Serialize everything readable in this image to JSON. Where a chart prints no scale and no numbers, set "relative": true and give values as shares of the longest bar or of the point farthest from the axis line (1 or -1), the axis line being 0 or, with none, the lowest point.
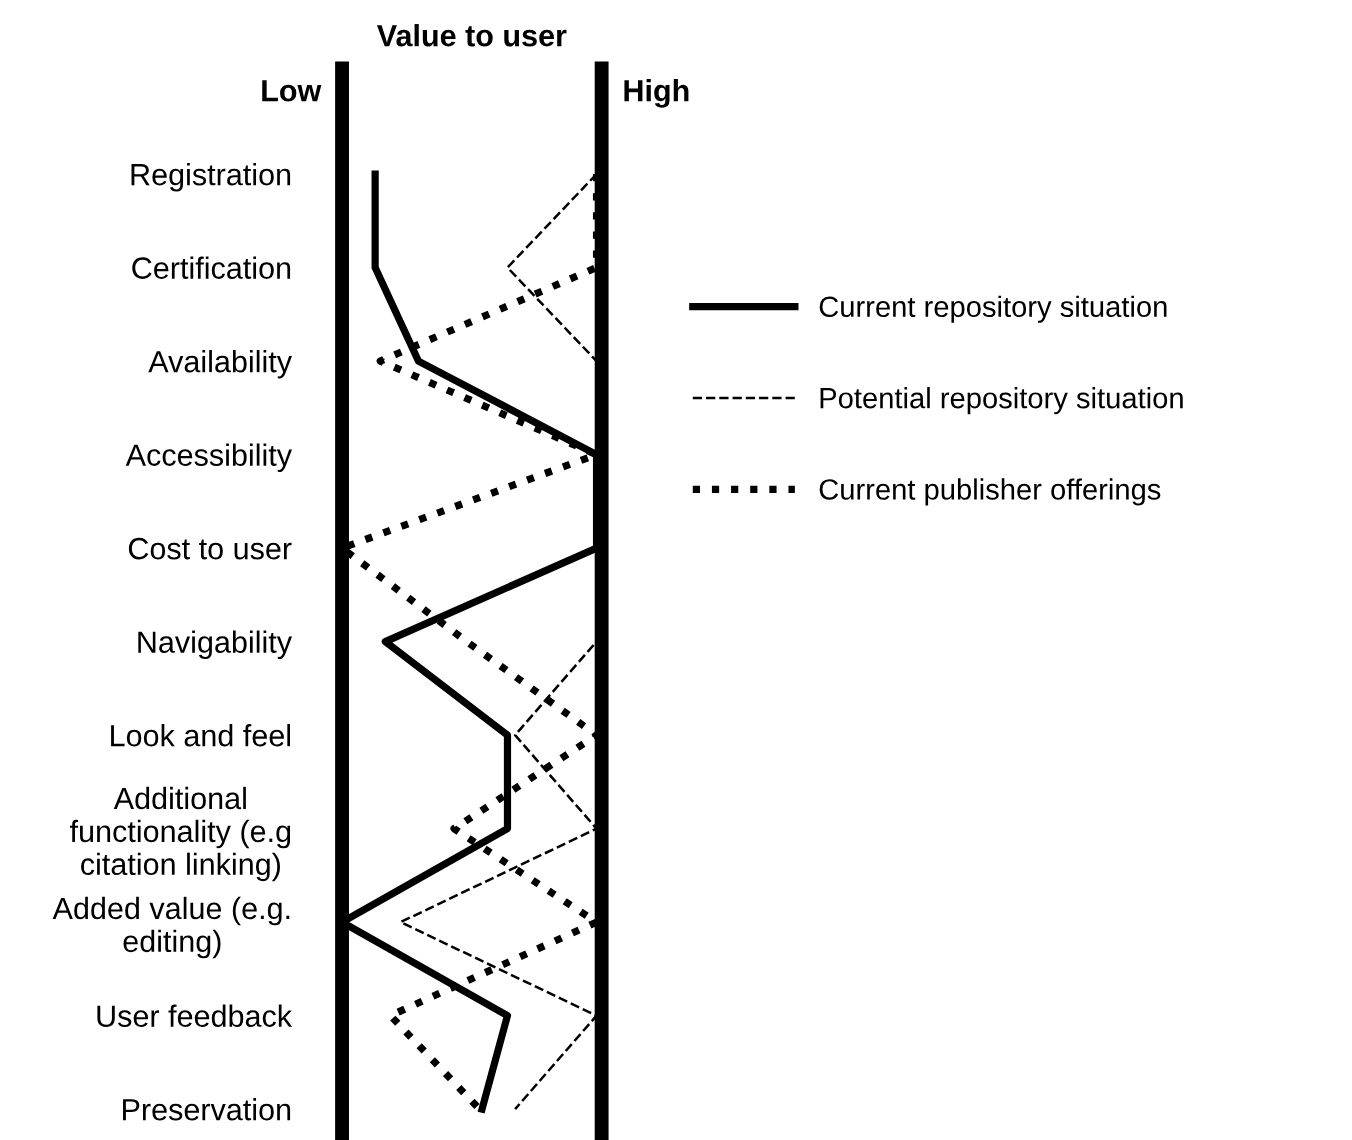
{
  "chart_data": {
    "type": "line",
    "orientation": "horizontal",
    "relative": true,
    "xlabel": "Value to user",
    "annotations": [
      "Low",
      "High"
    ],
    "categories": [
      "Registration",
      "Certification",
      "Availability",
      "Accessibility",
      "Cost to user",
      "Navigability",
      "Look and feel",
      "Additional\nfunctionality (e.g\ncitation linking)",
      "Added value (e.g.\nediting)",
      "User feedback",
      "Preservation"
    ],
    "series": [
      {
        "name": "Current repository situation",
        "color": "#000000",
        "line_style": "solid",
        "values": [
          0.13,
          0.13,
          0.3,
          1.0,
          1.0,
          0.17,
          0.65,
          0.65,
          0.0,
          0.65,
          0.55
        ]
      },
      {
        "name": "Potential repository situation",
        "color": "#000000",
        "line_style": "dashed",
        "values": [
          1.0,
          0.65,
          1.0,
          1.0,
          1.0,
          1.0,
          0.68,
          1.0,
          0.23,
          1.0,
          0.68
        ]
      },
      {
        "name": "Current publisher offerings",
        "color": "#000000",
        "line_style": "dotted",
        "values": [
          1.0,
          1.0,
          0.15,
          1.0,
          0.0,
          0.49,
          1.0,
          0.44,
          1.0,
          0.19,
          0.54
        ]
      }
    ],
    "legend": "right",
    "grid": false,
    "marker": "none"
  }
}
